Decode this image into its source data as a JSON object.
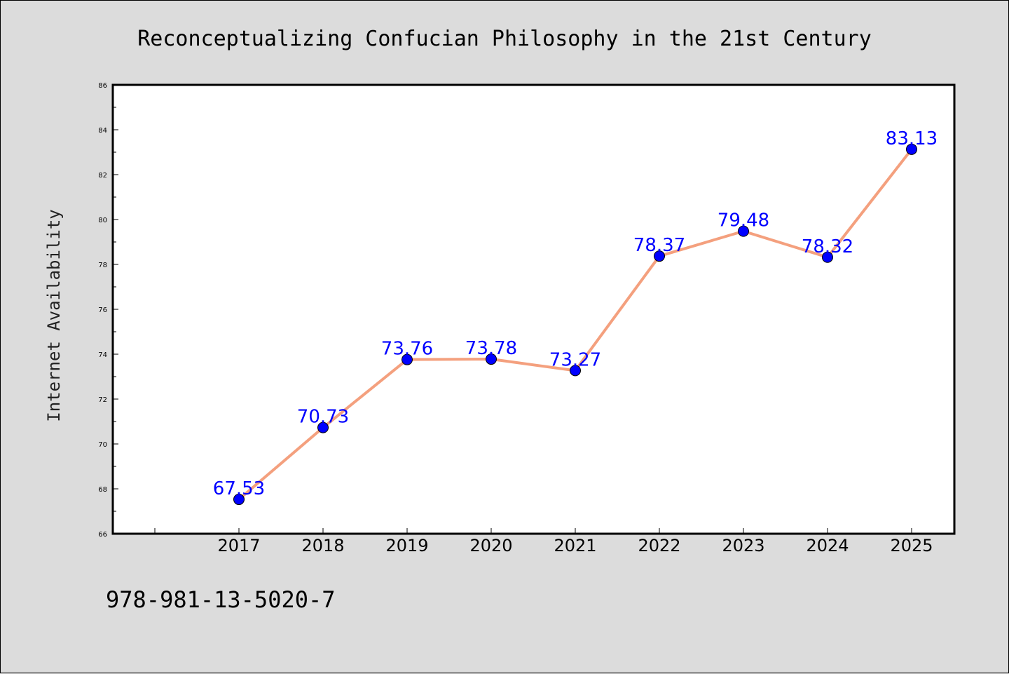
{
  "chart_data": {
    "type": "line",
    "title": "Reconceptualizing Confucian Philosophy in the 21st Century",
    "xlabel": "",
    "ylabel": "Internet Availability",
    "categories": [
      "2017",
      "2018",
      "2019",
      "2020",
      "2021",
      "2022",
      "2023",
      "2024",
      "2025"
    ],
    "series": [
      {
        "values": [
          67.53,
          70.73,
          73.76,
          73.78,
          73.27,
          78.37,
          79.48,
          78.32,
          83.13
        ],
        "labels": [
          "67.53",
          "70.73",
          "73.76",
          "73.78",
          "73.27",
          "78.37",
          "79.48",
          "78.32",
          "83.13"
        ]
      }
    ],
    "ylim": [
      66,
      86
    ],
    "yticks": [
      "66",
      "68",
      "70",
      "72",
      "74",
      "76",
      "78",
      "80",
      "82",
      "84",
      "86"
    ],
    "grid": false,
    "line_color": "#f4a07e",
    "marker_color": "#0000ff",
    "label_color": "#0000ff",
    "background_color": "#dcdcdc",
    "plot_background_color": "#ffffff"
  },
  "footer": {
    "isbn": "978-981-13-5020-7"
  }
}
